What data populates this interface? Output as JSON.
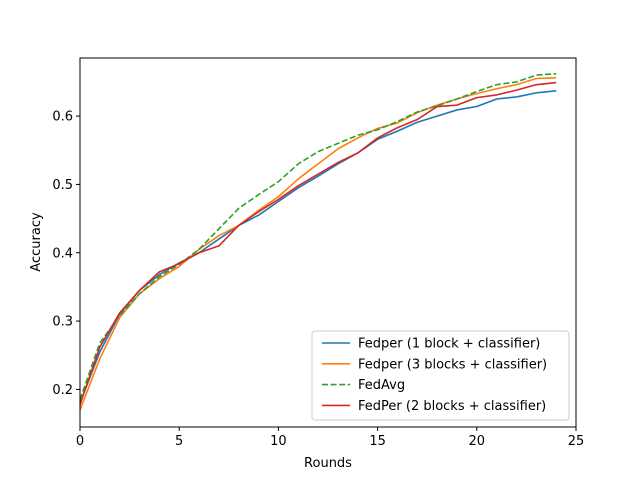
{
  "chart_data": {
    "type": "line",
    "title": "",
    "xlabel": "Rounds",
    "ylabel": "Accuracy",
    "xlim": [
      0,
      25
    ],
    "ylim": [
      0.145,
      0.685
    ],
    "xticks": [
      0,
      5,
      10,
      15,
      20,
      25
    ],
    "yticks": [
      0.2,
      0.3,
      0.4,
      0.5,
      0.6
    ],
    "grid": false,
    "legend_position": "lower-right",
    "x": [
      0,
      1,
      2,
      3,
      4,
      5,
      6,
      7,
      8,
      9,
      10,
      11,
      12,
      13,
      14,
      15,
      16,
      17,
      18,
      19,
      20,
      21,
      22,
      23,
      24
    ],
    "series": [
      {
        "name": "Fedper (1 block + classifier)",
        "color": "#1f77b4",
        "dash": "solid",
        "values": [
          0.18,
          0.255,
          0.31,
          0.345,
          0.368,
          0.385,
          0.4,
          0.42,
          0.44,
          0.455,
          0.475,
          0.495,
          0.512,
          0.53,
          0.546,
          0.566,
          0.578,
          0.591,
          0.6,
          0.609,
          0.614,
          0.625,
          0.628,
          0.634,
          0.637
        ]
      },
      {
        "name": "Fedper (3 blocks + classifier)",
        "color": "#ff7f0e",
        "dash": "solid",
        "values": [
          0.17,
          0.245,
          0.305,
          0.34,
          0.362,
          0.38,
          0.405,
          0.425,
          0.44,
          0.462,
          0.482,
          0.508,
          0.53,
          0.552,
          0.568,
          0.582,
          0.59,
          0.605,
          0.616,
          0.625,
          0.633,
          0.64,
          0.646,
          0.655,
          0.656
        ]
      },
      {
        "name": "FedAvg",
        "color": "#2ca02c",
        "dash": "dashed",
        "values": [
          0.185,
          0.268,
          0.308,
          0.34,
          0.365,
          0.383,
          0.405,
          0.435,
          0.465,
          0.485,
          0.504,
          0.53,
          0.548,
          0.56,
          0.572,
          0.58,
          0.592,
          0.606,
          0.615,
          0.625,
          0.636,
          0.646,
          0.65,
          0.66,
          0.662
        ]
      },
      {
        "name": "FedPer (2 blocks + classifier)",
        "color": "#d62728",
        "dash": "solid",
        "values": [
          0.178,
          0.262,
          0.312,
          0.345,
          0.372,
          0.384,
          0.4,
          0.41,
          0.44,
          0.46,
          0.478,
          0.498,
          0.515,
          0.532,
          0.546,
          0.568,
          0.583,
          0.595,
          0.614,
          0.616,
          0.627,
          0.631,
          0.638,
          0.646,
          0.649
        ]
      }
    ]
  }
}
